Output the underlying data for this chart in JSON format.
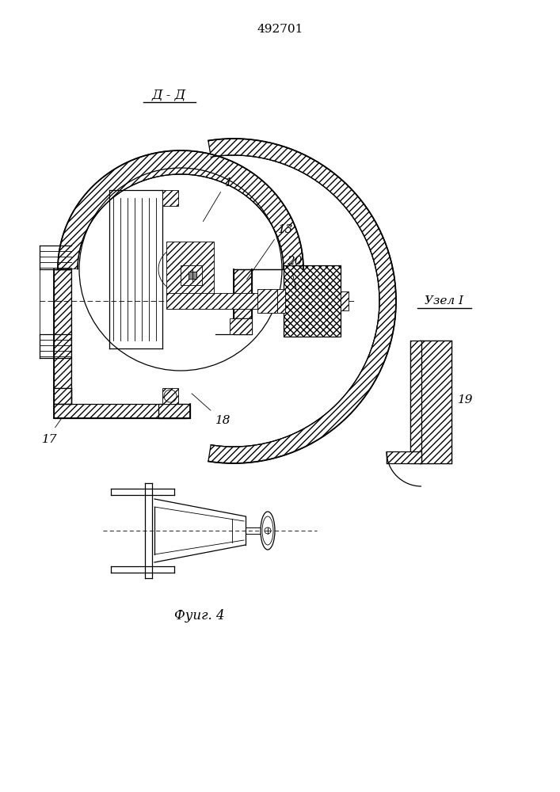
{
  "patent_number": "492701",
  "bg": "#ffffff",
  "lc": "#000000",
  "label_DD": "Д - Д",
  "label_node": "Узел I",
  "label_fig": "Фуиг. 4",
  "n1": "1",
  "n13": "13",
  "n17": "17",
  "n18": "18",
  "n19": "19",
  "n20": "20"
}
